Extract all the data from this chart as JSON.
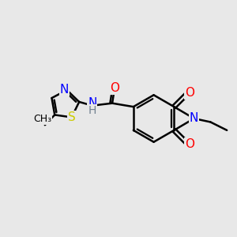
{
  "background_color": "#e8e8e8",
  "bond_color": "#000000",
  "bond_width": 1.8,
  "atom_colors": {
    "O": "#ff0000",
    "N": "#0000ff",
    "S": "#cccc00",
    "C": "#000000"
  },
  "font_size": 10,
  "xlim": [
    -4.5,
    5.5
  ],
  "ylim": [
    -3.5,
    3.5
  ]
}
